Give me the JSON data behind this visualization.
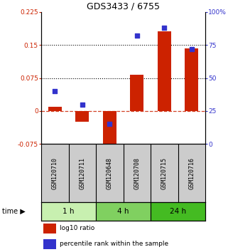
{
  "title": "GDS3433 / 6755",
  "samples": [
    "GSM120710",
    "GSM120711",
    "GSM120648",
    "GSM120708",
    "GSM120715",
    "GSM120716"
  ],
  "log10_ratio": [
    0.01,
    -0.025,
    -0.095,
    0.082,
    0.182,
    0.143
  ],
  "percentile_rank": [
    40,
    30,
    15,
    82,
    88,
    72
  ],
  "left_ylim": [
    -0.075,
    0.225
  ],
  "right_ylim": [
    0,
    100
  ],
  "left_yticks": [
    -0.075,
    0,
    0.075,
    0.15,
    0.225
  ],
  "right_yticks": [
    0,
    25,
    50,
    75,
    100
  ],
  "right_yticklabels": [
    "0",
    "25",
    "50",
    "75",
    "100%"
  ],
  "hlines_dotted": [
    0.075,
    0.15
  ],
  "hline_dashed": 0,
  "bar_color": "#cc2200",
  "square_color": "#3333cc",
  "group_colors": [
    "#c8f0b0",
    "#80d060",
    "#44bb22"
  ],
  "groups": [
    {
      "label": "1 h",
      "indices": [
        0,
        1
      ],
      "color": "#c8f0b0"
    },
    {
      "label": "4 h",
      "indices": [
        2,
        3
      ],
      "color": "#80d060"
    },
    {
      "label": "24 h",
      "indices": [
        4,
        5
      ],
      "color": "#44bb22"
    }
  ],
  "legend_bar_label": "log10 ratio",
  "legend_sq_label": "percentile rank within the sample",
  "time_label": "time",
  "sample_bg": "#cccccc",
  "background_color": "#ffffff"
}
